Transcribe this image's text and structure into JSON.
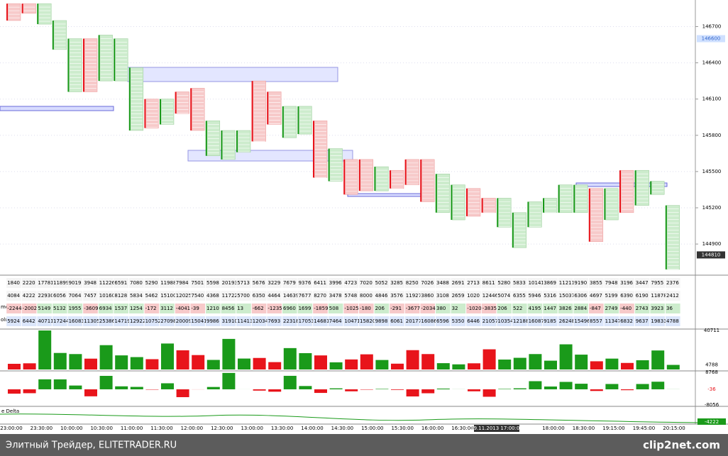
{
  "chart_data": {
    "type": "footprint",
    "price": {
      "ylim": [
        144660,
        146920
      ],
      "yticks": [
        146700,
        146400,
        146100,
        145800,
        145500,
        145200,
        144900
      ],
      "marker_labels": [
        146600,
        144810
      ],
      "highs": [
        146890,
        146890,
        146890,
        146750,
        146600,
        146600,
        146630,
        146600,
        146360,
        146100,
        146100,
        146160,
        146190,
        145920,
        145840,
        145840,
        146250,
        146160,
        146040,
        146040,
        145920,
        145690,
        145600,
        145600,
        145540,
        145510,
        145600,
        145600,
        145480,
        145390,
        145360,
        145280,
        145280,
        145160,
        145250,
        145280,
        145390,
        145390,
        145360,
        145360,
        145510,
        145510,
        145420,
        145220
      ],
      "lows": [
        146750,
        146810,
        146720,
        146510,
        146160,
        146160,
        146250,
        146250,
        145840,
        145860,
        145890,
        145980,
        145840,
        145630,
        145600,
        145660,
        145750,
        145890,
        145780,
        145810,
        145450,
        145420,
        145310,
        145340,
        145340,
        145360,
        145390,
        145250,
        145160,
        145100,
        145130,
        145160,
        145040,
        144870,
        145040,
        145160,
        145160,
        145160,
        144920,
        145100,
        145160,
        145220,
        145310,
        144690
      ]
    },
    "table": {
      "rows": [
        {
          "values": [
            1840,
            2220,
            17781,
            11899,
            9019,
            3948,
            11226,
            6591,
            7080,
            5290,
            11988,
            7984,
            7501,
            5598,
            20193,
            5713,
            5676,
            3229,
            7679,
            9376,
            6411,
            3996,
            4723,
            7020,
            5052,
            3285,
            8250,
            7026,
            3488,
            2691,
            2713,
            8611,
            5280,
            5833,
            10141,
            3869,
            11211,
            9190,
            3855,
            7948,
            3196,
            3447,
            7955,
            2376
          ]
        },
        {
          "values": [
            4084,
            4222,
            22930,
            6056,
            7064,
            7457,
            10160,
            8128,
            5834,
            5462,
            15100,
            12025,
            7540,
            4368,
            11722,
            5700,
            6350,
            4464,
            14639,
            7677,
            8270,
            3478,
            5748,
            8000,
            4846,
            3576,
            11927,
            3860,
            3108,
            2659,
            1020,
            12446,
            5074,
            6355,
            5946,
            5316,
            15037,
            6306,
            4697,
            5199,
            6390,
            6190,
            11878,
            2412
          ]
        },
        {
          "label": "me",
          "values": [
            -2244,
            -2002,
            5149,
            5132,
            1955,
            -3609,
            6934,
            1537,
            1254,
            -172,
            3112,
            -4041,
            -39,
            1210,
            8456,
            13,
            -662,
            -1235,
            6960,
            1699,
            -1859,
            508,
            -1025,
            -180,
            206,
            -291,
            -3677,
            -2034,
            380,
            32,
            -1020,
            -3835,
            206,
            522,
            4195,
            1447,
            3826,
            2884,
            -847,
            2749,
            -440,
            2743,
            3923,
            36
          ]
        },
        {
          "label": "olume",
          "values": [
            5924,
            6442,
            40711,
            17244,
            16083,
            11305,
            25386,
            14719,
            12922,
            10752,
            27098,
            20009,
            15041,
            9986,
            31910,
            11413,
            12034,
            7693,
            22318,
            17053,
            14681,
            7464,
            10471,
            15820,
            9898,
            6061,
            20177,
            16086,
            6596,
            5350,
            6446,
            21057,
            10354,
            12188,
            16087,
            9185,
            26248,
            15496,
            8557,
            11347,
            6832,
            9637,
            19833,
            4788
          ]
        }
      ]
    },
    "volume_panel": {
      "ylim": [
        0,
        40711
      ],
      "labels": [
        40711,
        4788
      ]
    },
    "delta_panel": {
      "ylim": [
        -8056,
        8768
      ],
      "labels": [
        8768,
        -36,
        -8056
      ]
    },
    "cum_delta": {
      "title": "e Delta",
      "label": -4222
    },
    "colors": {
      "up": "#1a9a1a",
      "down": "#e8141b",
      "up_cell": "#cdeccd",
      "down_cell": "#f7caca"
    },
    "time_labels": [
      "23:00:00",
      "23:30:00",
      "10:00:00",
      "10:30:00",
      "11:00:00",
      "11:30:00",
      "12:00:00",
      "12:30:00",
      "13:00:00",
      "13:30:00",
      "14:00:00",
      "14:30:00",
      "15:00:00",
      "15:30:00",
      "16:00:00",
      "16:30:00",
      "19.11.2013 17:00:00",
      "18:00:00",
      "18:30:00",
      "19:15:00",
      "19:45:00",
      "20:15:00"
    ]
  },
  "footer": {
    "left": "Элитный Трейдер, ELITETRADER.RU",
    "right": "clip2net.com"
  }
}
